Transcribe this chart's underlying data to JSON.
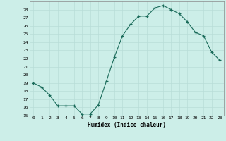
{
  "x": [
    0,
    1,
    2,
    3,
    4,
    5,
    6,
    7,
    8,
    9,
    10,
    11,
    12,
    13,
    14,
    15,
    16,
    17,
    18,
    19,
    20,
    21,
    22,
    23
  ],
  "y": [
    19,
    18.5,
    17.5,
    16.2,
    16.2,
    16.2,
    15.2,
    15.2,
    16.3,
    19.2,
    22.2,
    24.8,
    26.2,
    27.2,
    27.2,
    28.2,
    28.5,
    28.0,
    27.5,
    26.5,
    25.2,
    24.8,
    22.8,
    21.8
  ],
  "xlabel": "Humidex (Indice chaleur)",
  "ylim": [
    15,
    29
  ],
  "xlim": [
    -0.5,
    23.5
  ],
  "yticks": [
    15,
    16,
    17,
    18,
    19,
    20,
    21,
    22,
    23,
    24,
    25,
    26,
    27,
    28
  ],
  "xticks": [
    0,
    1,
    2,
    3,
    4,
    5,
    6,
    7,
    8,
    9,
    10,
    11,
    12,
    13,
    14,
    15,
    16,
    17,
    18,
    19,
    20,
    21,
    22,
    23
  ],
  "line_color": "#1a6b5a",
  "bg_color": "#cceee8",
  "grid_color": "#b8ddd8"
}
